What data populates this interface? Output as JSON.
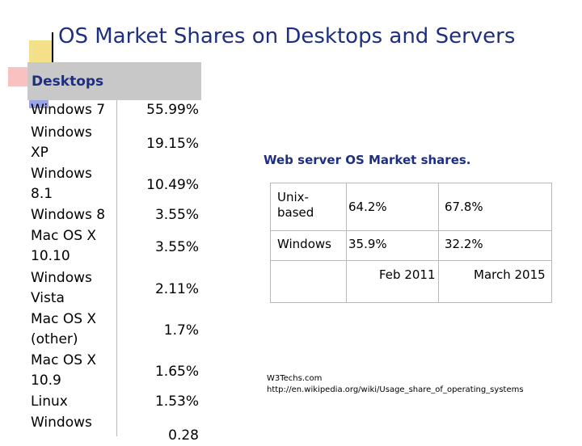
{
  "title": "OS Market Shares on Desktops and Servers",
  "desktops": {
    "heading": "Desktops",
    "rows": [
      {
        "name": "Windows 7",
        "value": "55.99%"
      },
      {
        "name": "Windows XP",
        "value": "19.15%"
      },
      {
        "name": "Windows 8.1",
        "value": "10.49%"
      },
      {
        "name": "Windows 8",
        "value": "3.55%"
      },
      {
        "name": "Mac OS X 10.10",
        "value": "3.55%"
      },
      {
        "name": "Windows Vista",
        "value": "2.11%"
      },
      {
        "name": "Mac OS X (other)",
        "value": "1.7%"
      },
      {
        "name": "Mac OS X 10.9",
        "value": "1.65%"
      },
      {
        "name": "Linux",
        "value": "1.53%"
      },
      {
        "name": "Windows",
        "value": "0.28"
      }
    ]
  },
  "web_server": {
    "heading": "Web server OS Market shares.",
    "rows": [
      {
        "name": "Unix-\nbased",
        "feb_2011": "64.2%",
        "mar_2015": "67.8%"
      },
      {
        "name": "Windows",
        "feb_2011": "35.9%",
        "mar_2015": "32.2%"
      }
    ],
    "col_feb": "Feb 2011",
    "col_mar": "March 2015"
  },
  "source": {
    "line1": "W3Techs.com",
    "line2": "http://en.wikipedia.org/wiki/Usage_share_of_operating_systems"
  }
}
